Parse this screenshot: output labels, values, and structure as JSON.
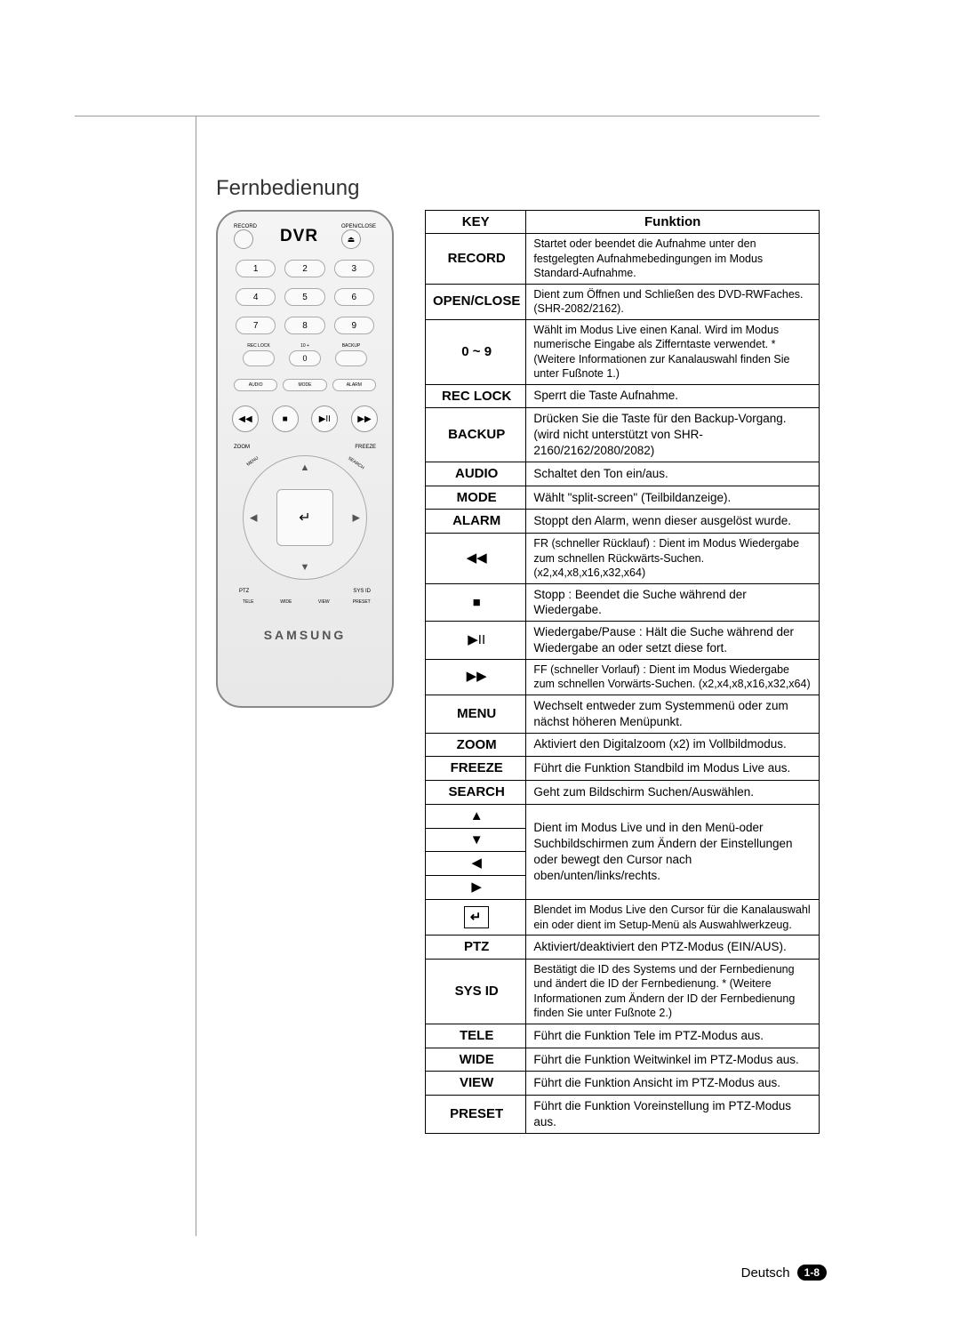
{
  "title": "Fernbedienung",
  "remote": {
    "topLeftLabel": "RECORD",
    "center": "DVR",
    "topRightLabel": "OPEN/CLOSE",
    "numbers": [
      "1",
      "2",
      "3",
      "4",
      "5",
      "6",
      "7",
      "8",
      "9"
    ],
    "reclock": "REC LOCK",
    "tenplus": "10 +",
    "zero": "0",
    "backup": "BACKUP",
    "pills": [
      "AUDIO",
      "MODE",
      "ALARM"
    ],
    "transport": [
      "◀◀",
      "■",
      "▶II",
      "▶▶"
    ],
    "arcL": "ZOOM",
    "arcR": "FREEZE",
    "menuL": "MENU",
    "menuR": "SEARCH",
    "enter": "↵",
    "ptz": "PTZ",
    "sysid": "SYS ID",
    "bottom": [
      "TELE",
      "WIDE",
      "VIEW",
      "PRESET"
    ],
    "brand": "SAMSUNG"
  },
  "table": {
    "headerKey": "KEY",
    "headerFunc": "Funktion",
    "rows": [
      {
        "k": "RECORD",
        "f": "Startet oder beendet die Aufnahme unter den festgelegten Aufnahmebedingungen im Modus Standard-Aufnahme.",
        "sm": true
      },
      {
        "k": "OPEN/CLOSE",
        "f": "Dient zum Öffnen und Schließen des DVD-RWFaches. (SHR-2082/2162).",
        "sm": true
      },
      {
        "k": "0 ~ 9",
        "f": "Wählt im Modus Live einen Kanal. Wird im Modus numerische Eingabe als Zifferntaste verwendet. * (Weitere Informationen zur Kanalauswahl finden Sie unter Fußnote 1.)",
        "sm": true
      },
      {
        "k": "REC LOCK",
        "f": "Sperrt die Taste Aufnahme."
      },
      {
        "k": "BACKUP",
        "f": "Drücken Sie die Taste für den Backup-Vorgang. (wird nicht unterstützt von SHR-2160/2162/2080/2082)"
      },
      {
        "k": "AUDIO",
        "f": "Schaltet den Ton ein/aus."
      },
      {
        "k": "MODE",
        "f": "Wählt \"split-screen\" (Teilbildanzeige)."
      },
      {
        "k": "ALARM",
        "f": "Stoppt den Alarm, wenn dieser ausgelöst wurde."
      },
      {
        "sym": "◀◀",
        "f": "FR (schneller Rücklauf) : Dient im Modus Wiedergabe zum schnellen Rückwärts-Suchen.(x2,x4,x8,x16,x32,x64)",
        "sm": true
      },
      {
        "sym": "■",
        "f": "Stopp : Beendet die Suche während der Wiedergabe."
      },
      {
        "sym": "▶II",
        "f": "Wiedergabe/Pause : Hält die Suche während der Wiedergabe an oder setzt diese fort."
      },
      {
        "sym": "▶▶",
        "f": "FF (schneller Vorlauf) : Dient im Modus Wiedergabe zum schnellen Vorwärts-Suchen. (x2,x4,x8,x16,x32,x64)",
        "sm": true
      },
      {
        "k": "MENU",
        "f": "Wechselt entweder zum Systemmenü oder zum nächst höheren Menüpunkt."
      },
      {
        "k": "ZOOM",
        "f": "Aktiviert den Digitalzoom (x2) im Vollbildmodus."
      },
      {
        "k": "FREEZE",
        "f": "Führt die Funktion Standbild im Modus Live aus."
      },
      {
        "k": "SEARCH",
        "f": "Geht zum Bildschirm Suchen/Auswählen."
      },
      {
        "arrows": [
          "▲",
          "▼",
          "◀",
          "▶"
        ],
        "f": "Dient im Modus Live und in den Menü-oder Suchbildschirmen zum Ändern der Einstellungen oder bewegt den Cursor nach oben/unten/links/rechts."
      },
      {
        "enter": true,
        "f": "Blendet im Modus Live den Cursor für die Kanalauswahl ein oder dient im Setup-Menü als Auswahlwerkzeug.",
        "sm": true
      },
      {
        "k": "PTZ",
        "f": "Aktiviert/deaktiviert den PTZ-Modus (EIN/AUS)."
      },
      {
        "k": "SYS ID",
        "f": "Bestätigt die ID des Systems und der Fernbedienung und ändert die ID der Fernbedienung. * (Weitere Informationen zum Ändern der ID der Fernbedienung finden Sie unter Fußnote 2.)",
        "sm": true,
        "noupper": true
      },
      {
        "k": "TELE",
        "f": "Führt die Funktion Tele im PTZ-Modus aus."
      },
      {
        "k": "WIDE",
        "f": "Führt die Funktion Weitwinkel im PTZ-Modus aus."
      },
      {
        "k": "VIEW",
        "f": "Führt die Funktion Ansicht im PTZ-Modus aus."
      },
      {
        "k": "PRESET",
        "f": "Führt die Funktion Voreinstellung im PTZ-Modus aus."
      }
    ]
  },
  "footer": {
    "lang": "Deutsch",
    "page": "1-8"
  }
}
